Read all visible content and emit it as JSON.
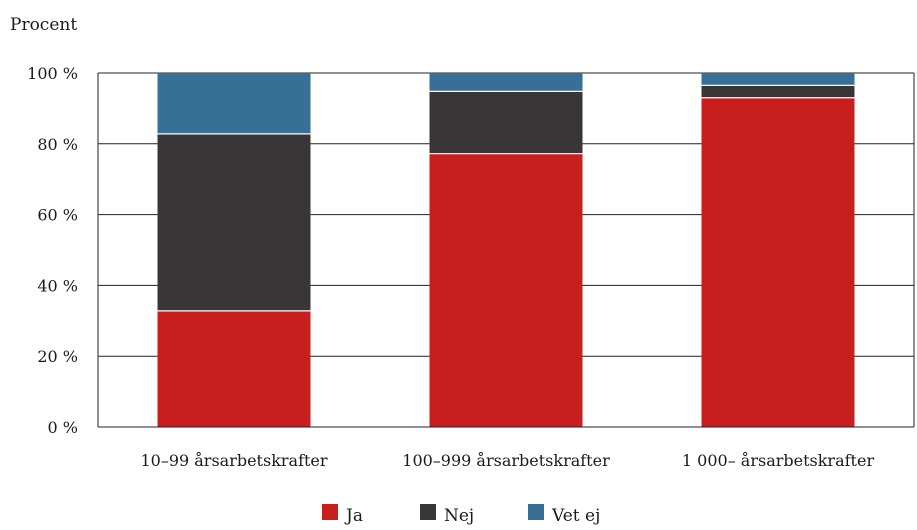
{
  "chart_data": {
    "type": "bar",
    "stacked": true,
    "ylabel": "Procent",
    "categories": [
      "10–99 årsarbetskrafter",
      "100–999 årsarbetskrafter",
      "1 000– årsarbetskrafter"
    ],
    "series": [
      {
        "name": "Ja",
        "color": "#c81e1e",
        "values": [
          32.8,
          77.2,
          93.0
        ]
      },
      {
        "name": "Nej",
        "color": "#3a3536",
        "values": [
          50.0,
          17.6,
          3.5
        ]
      },
      {
        "name": "Vet ej",
        "color": "#376f97",
        "values": [
          17.2,
          5.2,
          3.5
        ]
      }
    ],
    "ylim": [
      0,
      100
    ],
    "yticks": [
      0,
      20,
      40,
      60,
      80,
      100
    ],
    "ytick_labels": [
      "0 %",
      "20 %",
      "40 %",
      "60 %",
      "80 %",
      "100 %"
    ],
    "grid": true,
    "legend_position": "bottom-center"
  }
}
